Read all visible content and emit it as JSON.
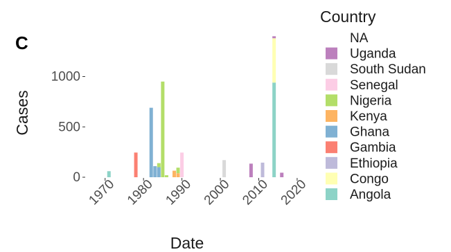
{
  "chart_data": {
    "type": "bar",
    "stacked": true,
    "panel_label": "C",
    "xlabel": "Date",
    "ylabel": "Cases",
    "xlim": [
      1965,
      2022
    ],
    "ylim": [
      0,
      1430
    ],
    "x_ticks": [
      1970,
      1980,
      1990,
      2000,
      2010,
      2020
    ],
    "y_ticks": [
      0,
      500,
      1000
    ],
    "legend_title": "Country",
    "legend_position": "right",
    "grid": false,
    "countries": [
      {
        "name": "NA",
        "color": "#ffffff"
      },
      {
        "name": "Uganda",
        "color": "#bc80bd"
      },
      {
        "name": "South Sudan",
        "color": "#d9d9d9"
      },
      {
        "name": "Senegal",
        "color": "#fccde5"
      },
      {
        "name": "Nigeria",
        "color": "#b3de69"
      },
      {
        "name": "Kenya",
        "color": "#fdb462"
      },
      {
        "name": "Ghana",
        "color": "#80b1d3"
      },
      {
        "name": "Gambia",
        "color": "#fb8072"
      },
      {
        "name": "Ethiopia",
        "color": "#bebada"
      },
      {
        "name": "Congo",
        "color": "#ffffb3"
      },
      {
        "name": "Angola",
        "color": "#8dd3c7"
      }
    ],
    "bars": [
      {
        "x": 1971,
        "segments": [
          {
            "country": "Angola",
            "value": 60
          }
        ]
      },
      {
        "x": 1978,
        "segments": [
          {
            "country": "Gambia",
            "value": 245
          }
        ]
      },
      {
        "x": 1982,
        "segments": [
          {
            "country": "Ghana",
            "value": 690
          }
        ]
      },
      {
        "x": 1983,
        "segments": [
          {
            "country": "Ghana",
            "value": 110
          }
        ]
      },
      {
        "x": 1984,
        "segments": [
          {
            "country": "Ghana",
            "value": 100
          },
          {
            "country": "Nigeria",
            "value": 40
          }
        ]
      },
      {
        "x": 1985,
        "segments": [
          {
            "country": "Nigeria",
            "value": 950
          }
        ]
      },
      {
        "x": 1986,
        "segments": [
          {
            "country": "Nigeria",
            "value": 20
          }
        ]
      },
      {
        "x": 1988,
        "segments": [
          {
            "country": "Kenya",
            "value": 65
          }
        ]
      },
      {
        "x": 1989,
        "segments": [
          {
            "country": "Kenya",
            "value": 40
          },
          {
            "country": "Nigeria",
            "value": 55
          }
        ]
      },
      {
        "x": 1990,
        "segments": [
          {
            "country": "Senegal",
            "value": 245
          }
        ]
      },
      {
        "x": 2001,
        "segments": [
          {
            "country": "South Sudan",
            "value": 170
          }
        ]
      },
      {
        "x": 2008,
        "segments": [
          {
            "country": "Uganda",
            "value": 135
          }
        ]
      },
      {
        "x": 2011,
        "segments": [
          {
            "country": "Ethiopia",
            "value": 145
          }
        ]
      },
      {
        "x": 2014,
        "segments": [
          {
            "country": "Angola",
            "value": 940
          },
          {
            "country": "Congo",
            "value": 440
          },
          {
            "country": "Uganda",
            "value": 20
          }
        ]
      },
      {
        "x": 2016,
        "segments": [
          {
            "country": "Uganda",
            "value": 45
          }
        ]
      }
    ]
  }
}
